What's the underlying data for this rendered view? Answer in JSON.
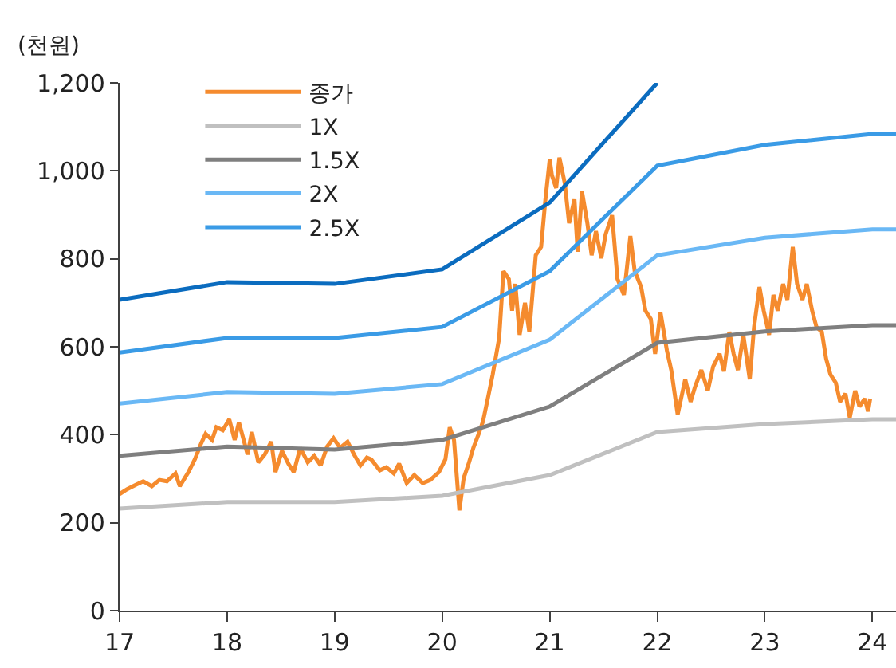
{
  "chart_data": {
    "type": "line",
    "ylabel": "(천원)",
    "xlim": [
      17,
      24.22
    ],
    "xticks": [
      17,
      18,
      19,
      20,
      21,
      22,
      23,
      24
    ],
    "ylim": [
      0,
      1200
    ],
    "yticks": [
      0,
      {
        "value": 200,
        "label": "200"
      },
      {
        "value": 400,
        "label": "400"
      },
      {
        "value": 600,
        "label": "600"
      },
      {
        "value": 800,
        "label": "800"
      },
      {
        "value": 1000,
        "label": "1,000"
      },
      {
        "value": 1200,
        "label": "1,200"
      }
    ],
    "legend": "top left",
    "marker": "none",
    "line_style": "solid",
    "series": [
      {
        "name": "종가",
        "color": "#f58b2e",
        "x": [
          17.0,
          17.07,
          17.15,
          17.22,
          17.3,
          17.37,
          17.44,
          17.52,
          17.56,
          17.64,
          17.7,
          17.76,
          17.8,
          17.86,
          17.9,
          17.96,
          18.02,
          18.07,
          18.11,
          18.19,
          18.23,
          18.29,
          18.35,
          18.41,
          18.45,
          18.51,
          18.57,
          18.62,
          18.68,
          18.75,
          18.81,
          18.87,
          18.93,
          18.99,
          19.05,
          19.12,
          19.18,
          19.24,
          19.3,
          19.34,
          19.42,
          19.48,
          19.55,
          19.6,
          19.67,
          19.74,
          19.82,
          19.89,
          19.97,
          20.03,
          20.07,
          20.11,
          20.16,
          20.2,
          20.25,
          20.29,
          20.34,
          20.38,
          20.43,
          20.47,
          20.53,
          20.57,
          20.62,
          20.65,
          20.68,
          20.72,
          20.77,
          20.81,
          20.87,
          20.92,
          20.96,
          21.0,
          21.02,
          21.06,
          21.09,
          21.14,
          21.18,
          21.23,
          21.26,
          21.3,
          21.35,
          21.39,
          21.43,
          21.48,
          21.52,
          21.58,
          21.63,
          21.69,
          21.75,
          21.79,
          21.85,
          21.89,
          21.94,
          21.98,
          22.03,
          22.09,
          22.13,
          22.19,
          22.26,
          22.31,
          22.35,
          22.41,
          22.47,
          22.52,
          22.58,
          22.62,
          22.67,
          22.71,
          22.75,
          22.8,
          22.86,
          22.9,
          22.95,
          22.99,
          23.04,
          23.08,
          23.12,
          23.17,
          23.21,
          23.26,
          23.3,
          23.35,
          23.39,
          23.44,
          23.48,
          23.53,
          23.57,
          23.61,
          23.66,
          23.7,
          23.75,
          23.79,
          23.84,
          23.88,
          23.93,
          23.96,
          23.98
        ],
        "values": [
          265,
          276,
          286,
          294,
          283,
          297,
          294,
          312,
          283,
          315,
          344,
          381,
          402,
          388,
          417,
          410,
          435,
          388,
          428,
          355,
          406,
          337,
          355,
          384,
          315,
          363,
          334,
          315,
          370,
          337,
          352,
          330,
          373,
          392,
          370,
          384,
          355,
          330,
          348,
          344,
          319,
          326,
          312,
          334,
          290,
          308,
          290,
          297,
          315,
          344,
          417,
          388,
          228,
          301,
          337,
          370,
          402,
          431,
          489,
          537,
          620,
          772,
          754,
          682,
          743,
          627,
          700,
          634,
          808,
          827,
          935,
          1026,
          990,
          961,
          1030,
          972,
          881,
          935,
          816,
          953,
          881,
          808,
          863,
          801,
          856,
          899,
          754,
          718,
          852,
          772,
          736,
          682,
          663,
          584,
          678,
          591,
          547,
          446,
          526,
          475,
          508,
          547,
          500,
          555,
          584,
          544,
          634,
          584,
          547,
          627,
          526,
          645,
          736,
          682,
          627,
          718,
          682,
          743,
          707,
          827,
          743,
          707,
          743,
          682,
          645,
          634,
          573,
          537,
          518,
          475,
          493,
          439,
          500,
          464,
          482,
          453,
          482
        ]
      },
      {
        "name": "1X",
        "color": "#c0c0c0",
        "x": [
          17,
          18,
          19,
          20,
          21,
          22,
          23,
          24,
          24.22
        ],
        "values": [
          232,
          247,
          247,
          261,
          308,
          406,
          424,
          435,
          435
        ]
      },
      {
        "name": "1.5X",
        "color": "#7f7f7f",
        "x": [
          17,
          18,
          19,
          20,
          21,
          22,
          23,
          24,
          24.22
        ],
        "values": [
          352,
          373,
          366,
          388,
          464,
          609,
          635,
          649,
          649
        ]
      },
      {
        "name": "2X",
        "color": "#6ab8f5",
        "x": [
          17,
          18,
          19,
          20,
          21,
          22,
          23,
          24,
          24.22
        ],
        "values": [
          471,
          497,
          493,
          515,
          616,
          808,
          848,
          867,
          867
        ]
      },
      {
        "name": "2.5X",
        "color": "#3a9be6",
        "x": [
          17,
          18,
          19,
          20,
          21,
          22,
          23,
          24,
          24.22
        ],
        "values": [
          587,
          620,
          620,
          645,
          772,
          1012,
          1059,
          1084,
          1084
        ]
      },
      {
        "color": "#0b6cbf",
        "x": [
          17,
          18,
          19,
          20,
          21,
          22
        ],
        "values": [
          707,
          747,
          743,
          776,
          928,
          1200
        ]
      }
    ]
  }
}
